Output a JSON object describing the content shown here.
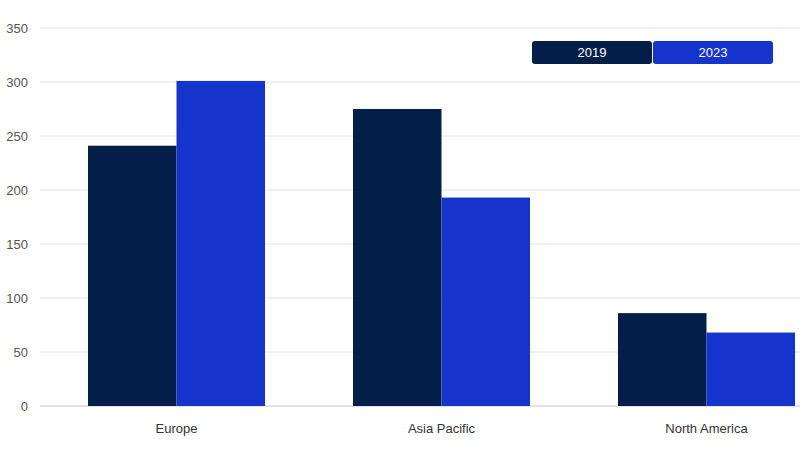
{
  "chart_data": {
    "type": "bar",
    "categories": [
      "Europe",
      "Asia Pacific",
      "North America"
    ],
    "series": [
      {
        "name": "2019",
        "color": "#041e4a",
        "values": [
          241,
          275,
          86
        ]
      },
      {
        "name": "2023",
        "color": "#1434cb",
        "values": [
          301,
          193,
          68
        ]
      }
    ],
    "ylim": [
      0,
      350
    ],
    "yticks": [
      0,
      50,
      100,
      150,
      200,
      250,
      300,
      350
    ],
    "grid": true,
    "legend": "top-right"
  }
}
